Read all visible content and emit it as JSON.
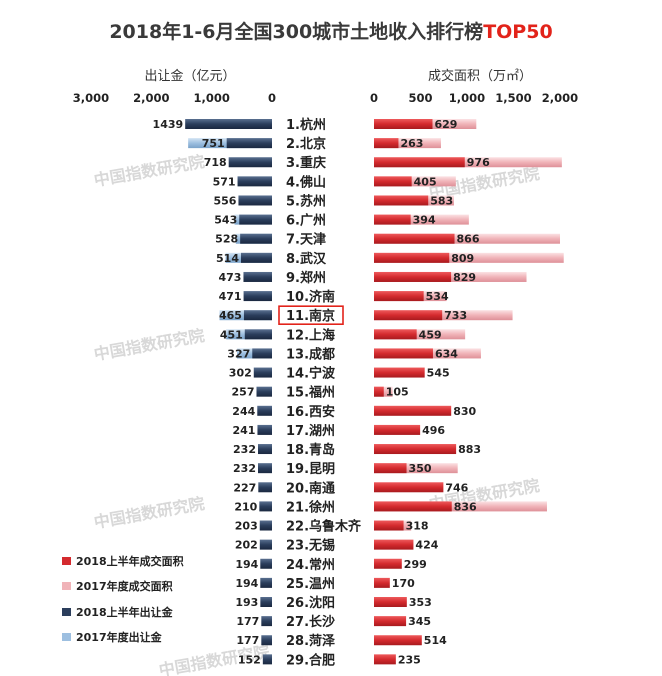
{
  "title_main": "2018年1-6月全国300城市土地收入排行榜",
  "title_accent": "TOP50",
  "left_axis_title": "出让金（亿元）",
  "right_axis_title": "成交面积（万㎡）",
  "watermark": "中国指数研究院",
  "chart_data": {
    "type": "bar",
    "layout": "butterfly",
    "title": "2018年1-6月全国300城市土地收入排行榜TOP50",
    "left": {
      "axis_title": "出让金（亿元）",
      "ticks": [
        3000,
        2000,
        1000,
        0
      ],
      "tick_labels": [
        "3,000",
        "2,000",
        "1,000",
        "0"
      ],
      "xlim": [
        0,
        3000
      ],
      "series": [
        {
          "name": "2018上半年出让金",
          "color": "#2b3e5c",
          "values": [
            1439,
            751,
            718,
            571,
            556,
            543,
            528,
            514,
            473,
            471,
            465,
            451,
            327,
            302,
            257,
            244,
            241,
            232,
            232,
            227,
            210,
            203,
            202,
            194,
            194,
            193,
            177,
            177,
            152
          ]
        },
        {
          "name": "2017年度出让金",
          "color": "#9dbfe0",
          "values": [
            1439,
            1390,
            718,
            571,
            556,
            620,
            600,
            770,
            473,
            471,
            870,
            760,
            580,
            302,
            257,
            244,
            241,
            232,
            232,
            227,
            210,
            203,
            202,
            194,
            194,
            193,
            177,
            177,
            152
          ]
        }
      ]
    },
    "right": {
      "axis_title": "成交面积（万㎡）",
      "ticks": [
        0,
        500,
        1000,
        1500,
        2000
      ],
      "tick_labels": [
        "0",
        "500",
        "1,000",
        "1,500",
        "2,000"
      ],
      "xlim": [
        0,
        2000
      ],
      "series": [
        {
          "name": "2018上半年成交面积",
          "color": "#d42a2e",
          "values": [
            629,
            263,
            976,
            405,
            583,
            394,
            866,
            809,
            829,
            534,
            733,
            459,
            634,
            545,
            105,
            830,
            496,
            883,
            350,
            746,
            836,
            318,
            424,
            299,
            170,
            353,
            345,
            514,
            235
          ]
        },
        {
          "name": "2017年度成交面积",
          "color": "#f0b3b8",
          "values": [
            1100,
            720,
            2020,
            880,
            860,
            1020,
            2000,
            2040,
            1640,
            780,
            1490,
            980,
            1150,
            545,
            200,
            830,
            496,
            883,
            900,
            746,
            1860,
            400,
            424,
            299,
            170,
            353,
            345,
            514,
            235
          ]
        }
      ]
    },
    "categories": [
      "1.杭州",
      "2.北京",
      "3.重庆",
      "4.佛山",
      "5.苏州",
      "6.广州",
      "7.天津",
      "8.武汉",
      "9.郑州",
      "10.济南",
      "11.南京",
      "12.上海",
      "13.成都",
      "14.宁波",
      "15.福州",
      "16.西安",
      "17.湖州",
      "18.青岛",
      "19.昆明",
      "20.南通",
      "21.徐州",
      "22.乌鲁木齐",
      "23.无锡",
      "24.常州",
      "25.温州",
      "26.沈阳",
      "27.长沙",
      "28.菏泽",
      "29.合肥"
    ],
    "highlight_category": "11.南京",
    "legend": [
      {
        "label": "2018上半年成交面积",
        "color": "#d42a2e"
      },
      {
        "label": "2017年度成交面积",
        "color": "#f0b3b8"
      },
      {
        "label": "2018上半年出让金",
        "color": "#2b3e5c"
      },
      {
        "label": "2017年度出让金",
        "color": "#9dbfe0"
      }
    ],
    "legend_position": "bottom-left",
    "grid": false
  }
}
